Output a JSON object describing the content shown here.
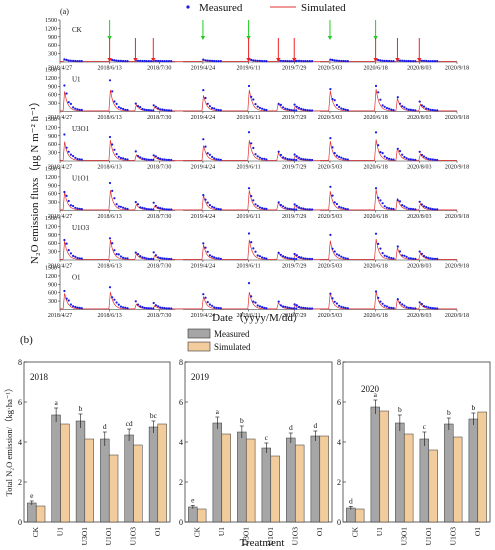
{
  "chart_data": [
    {
      "type": "scatter",
      "panel_label": "(a)",
      "legend": [
        "Measured",
        "Simulated"
      ],
      "ylabel": "N₂O emission fluxs（μg N m⁻² h⁻¹）",
      "xlabel": "Date（yyyy/M/dd）",
      "y_ticks": [
        300,
        600,
        900,
        1200,
        1500
      ],
      "x_tick_labels": [
        "2018/4/27",
        "2018/6/13",
        "2018/7/30",
        "2019/4/24",
        "2019/6/11",
        "2019/7/29",
        "2020/5/03",
        "2020/6/18",
        "2020/8/03",
        "2020/9/18"
      ],
      "treatments": [
        "CK",
        "U1",
        "U3O1",
        "U1O1",
        "U1O3",
        "O1"
      ],
      "fertilization_arrows": {
        "green": [
          "2018/6/13",
          "2019/4/24",
          "2019/6/11",
          "2020/5/03",
          "2020/6/18"
        ],
        "red": [
          "2018/6/13",
          "2018/7/10",
          "2018/7/20",
          "2019/6/11",
          "2019/7/05",
          "2019/7/15",
          "2020/6/18",
          "2020/7/10",
          "2020/8/03"
        ]
      }
    },
    {
      "type": "bar",
      "panel_label": "(b)",
      "legend": [
        "Measured",
        "Simulated"
      ],
      "ylabel": "Total N₂O emission/（kg·ha⁻¹）",
      "xlabel": "Treatment",
      "categories": [
        "CK",
        "U1",
        "U3O1",
        "U1O1",
        "U1O3",
        "O1"
      ],
      "ylim": [
        0,
        8
      ],
      "y_ticks": [
        0,
        2,
        4,
        6,
        8
      ],
      "years": [
        {
          "year": "2018",
          "measured": [
            0.95,
            5.35,
            5.05,
            4.15,
            4.35,
            4.75
          ],
          "simulated": [
            0.8,
            4.9,
            4.15,
            3.35,
            3.85,
            4.9
          ],
          "measured_err": [
            0.1,
            0.35,
            0.35,
            0.35,
            0.3,
            0.3
          ],
          "letters": [
            "e",
            "a",
            "b",
            "d",
            "cd",
            "bc"
          ]
        },
        {
          "year": "2019",
          "measured": [
            0.75,
            4.95,
            4.5,
            3.7,
            4.2,
            4.3
          ],
          "simulated": [
            0.65,
            4.4,
            4.15,
            3.3,
            3.85,
            4.3
          ],
          "measured_err": [
            0.08,
            0.3,
            0.3,
            0.25,
            0.25,
            0.25
          ],
          "letters": [
            "e",
            "a",
            "b",
            "c",
            "d",
            "d"
          ]
        },
        {
          "year": "2020",
          "measured": [
            0.7,
            5.75,
            4.95,
            4.15,
            4.9,
            5.15
          ],
          "simulated": [
            0.65,
            5.55,
            4.4,
            3.6,
            4.25,
            5.5
          ],
          "measured_err": [
            0.08,
            0.35,
            0.4,
            0.35,
            0.3,
            0.3
          ],
          "letters": [
            "d",
            "a",
            "b",
            "c",
            "b",
            "b"
          ]
        }
      ]
    }
  ],
  "colors": {
    "measured_points": "#1a1ae6",
    "simulated_line": "#e03030",
    "arrow_green": "#22cc22",
    "arrow_red": "#ee2222",
    "bar_measured": "#a6a6a6",
    "bar_simulated": "#f2cc9c"
  }
}
